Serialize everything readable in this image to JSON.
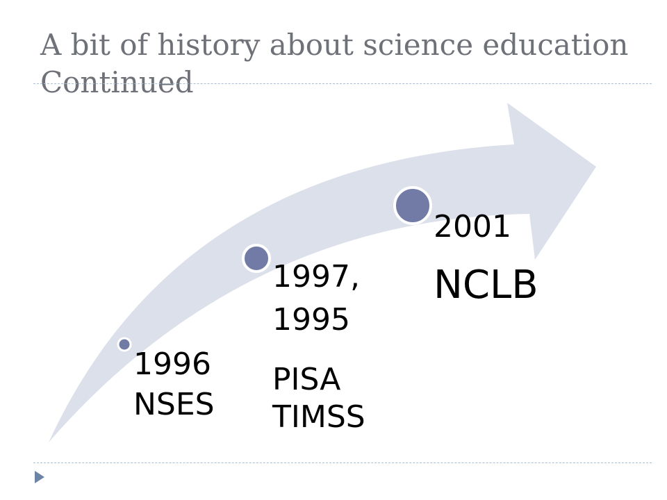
{
  "slide": {
    "title_line1": "A bit of history about science education",
    "title_line2": "Continued"
  },
  "colors": {
    "arrow_fill": "#dce0ea",
    "dot_fill": "#717ba6",
    "dot_stroke": "#ffffff",
    "title": "#6f7178",
    "rule": "#a9bdd0",
    "marker": "#6c84a6"
  },
  "icons": {
    "slide_marker": "triangle-bullet-icon",
    "timeline_marker": "circle-dot-icon"
  },
  "timeline": [
    {
      "year": "1996",
      "event": "NSES"
    },
    {
      "year_line1": "1997,",
      "year_line2": "1995",
      "event_line1": "PISA",
      "event_line2": "TIMSS"
    },
    {
      "year": "2001",
      "event": "NCLB"
    }
  ]
}
